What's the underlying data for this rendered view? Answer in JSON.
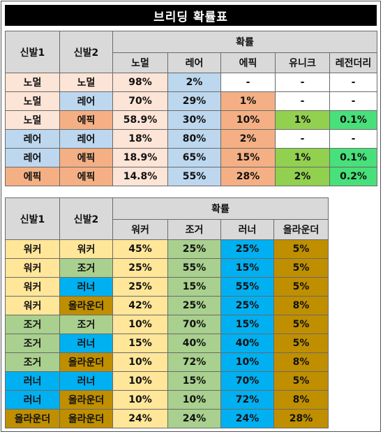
{
  "title": "브리딩 확률표",
  "table1": {
    "headers": {
      "shoe1": "신발1",
      "shoe2": "신발2",
      "prob": "확률",
      "cols": [
        "노멀",
        "레어",
        "에픽",
        "유니크",
        "레전더리"
      ]
    },
    "rows": [
      {
        "s1": "노멀",
        "s2": "노멀",
        "c1": "normal",
        "c2": "normal",
        "vals": [
          "98%",
          "2%",
          "-",
          "-",
          "-"
        ]
      },
      {
        "s1": "노멀",
        "s2": "레어",
        "c1": "normal",
        "c2": "rare",
        "vals": [
          "70%",
          "29%",
          "1%",
          "-",
          "-"
        ]
      },
      {
        "s1": "노멀",
        "s2": "에픽",
        "c1": "normal",
        "c2": "epic",
        "vals": [
          "58.9%",
          "30%",
          "10%",
          "1%",
          "0.1%"
        ]
      },
      {
        "s1": "레어",
        "s2": "레어",
        "c1": "rare",
        "c2": "rare",
        "vals": [
          "18%",
          "80%",
          "2%",
          "-",
          "-"
        ]
      },
      {
        "s1": "레어",
        "s2": "에픽",
        "c1": "rare",
        "c2": "epic",
        "vals": [
          "18.9%",
          "65%",
          "15%",
          "1%",
          "0.1%"
        ]
      },
      {
        "s1": "에픽",
        "s2": "에픽",
        "c1": "epic",
        "c2": "epic",
        "vals": [
          "14.8%",
          "55%",
          "28%",
          "2%",
          "0.2%"
        ]
      }
    ]
  },
  "table2": {
    "headers": {
      "shoe1": "신발1",
      "shoe2": "신발2",
      "prob": "확률",
      "cols": [
        "워커",
        "조거",
        "러너",
        "올라운더"
      ]
    },
    "rows": [
      {
        "s1": "워커",
        "s2": "워커",
        "c1": "walker",
        "c2": "walker",
        "vals": [
          "45%",
          "25%",
          "25%",
          "5%"
        ]
      },
      {
        "s1": "워커",
        "s2": "조거",
        "c1": "walker",
        "c2": "jogger",
        "vals": [
          "25%",
          "55%",
          "15%",
          "5%"
        ]
      },
      {
        "s1": "워커",
        "s2": "러너",
        "c1": "walker",
        "c2": "runner",
        "vals": [
          "25%",
          "15%",
          "55%",
          "5%"
        ]
      },
      {
        "s1": "워커",
        "s2": "올라운더",
        "c1": "walker",
        "c2": "allround",
        "vals": [
          "42%",
          "25%",
          "25%",
          "8%"
        ]
      },
      {
        "s1": "조거",
        "s2": "조거",
        "c1": "jogger",
        "c2": "jogger",
        "vals": [
          "10%",
          "70%",
          "15%",
          "5%"
        ]
      },
      {
        "s1": "조거",
        "s2": "러너",
        "c1": "jogger",
        "c2": "runner",
        "vals": [
          "15%",
          "40%",
          "40%",
          "5%"
        ]
      },
      {
        "s1": "조거",
        "s2": "올라운더",
        "c1": "jogger",
        "c2": "allround",
        "vals": [
          "10%",
          "72%",
          "10%",
          "8%"
        ]
      },
      {
        "s1": "러너",
        "s2": "러너",
        "c1": "runner",
        "c2": "runner",
        "vals": [
          "10%",
          "15%",
          "70%",
          "5%"
        ]
      },
      {
        "s1": "러너",
        "s2": "올라운더",
        "c1": "runner",
        "c2": "allround",
        "vals": [
          "10%",
          "10%",
          "72%",
          "8%"
        ]
      },
      {
        "s1": "올라운더",
        "s2": "올라운더",
        "c1": "allround",
        "c2": "allround",
        "vals": [
          "24%",
          "24%",
          "24%",
          "28%"
        ]
      }
    ]
  },
  "colors": {
    "normal": "#fce4d6",
    "rare": "#bdd7ee",
    "epic": "#f4b084",
    "unique": "#92d050",
    "legendary": "#48e07a",
    "walker": "#ffe699",
    "jogger": "#a9d08e",
    "runner": "#00b0f0",
    "allround": "#bf8f00",
    "header": "#d9d9d9"
  }
}
